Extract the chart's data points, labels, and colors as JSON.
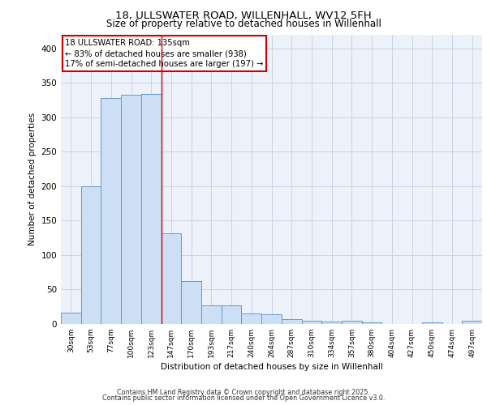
{
  "title_line1": "18, ULLSWATER ROAD, WILLENHALL, WV12 5FH",
  "title_line2": "Size of property relative to detached houses in Willenhall",
  "xlabel": "Distribution of detached houses by size in Willenhall",
  "ylabel": "Number of detached properties",
  "annotation_title": "18 ULLSWATER ROAD: 135sqm",
  "annotation_line2": "← 83% of detached houses are smaller (938)",
  "annotation_line3": "17% of semi-detached houses are larger (197) →",
  "footer_line1": "Contains HM Land Registry data © Crown copyright and database right 2025.",
  "footer_line2": "Contains public sector information licensed under the Open Government Licence v3.0.",
  "bar_color": "#ccdff5",
  "bar_edge_color": "#6699cc",
  "annotation_box_color": "#cc0000",
  "property_line_color": "#cc0000",
  "background_color": "#edf2fa",
  "grid_color": "#c8d4e8",
  "categories": [
    "30sqm",
    "53sqm",
    "77sqm",
    "100sqm",
    "123sqm",
    "147sqm",
    "170sqm",
    "193sqm",
    "217sqm",
    "240sqm",
    "264sqm",
    "287sqm",
    "310sqm",
    "334sqm",
    "357sqm",
    "380sqm",
    "404sqm",
    "427sqm",
    "450sqm",
    "474sqm",
    "497sqm"
  ],
  "values": [
    17,
    200,
    328,
    332,
    334,
    131,
    62,
    27,
    27,
    15,
    14,
    7,
    5,
    4,
    5,
    2,
    0,
    0,
    2,
    0,
    5
  ],
  "property_line_x": 4.5,
  "ylim": [
    0,
    420
  ],
  "yticks": [
    0,
    50,
    100,
    150,
    200,
    250,
    300,
    350,
    400
  ]
}
